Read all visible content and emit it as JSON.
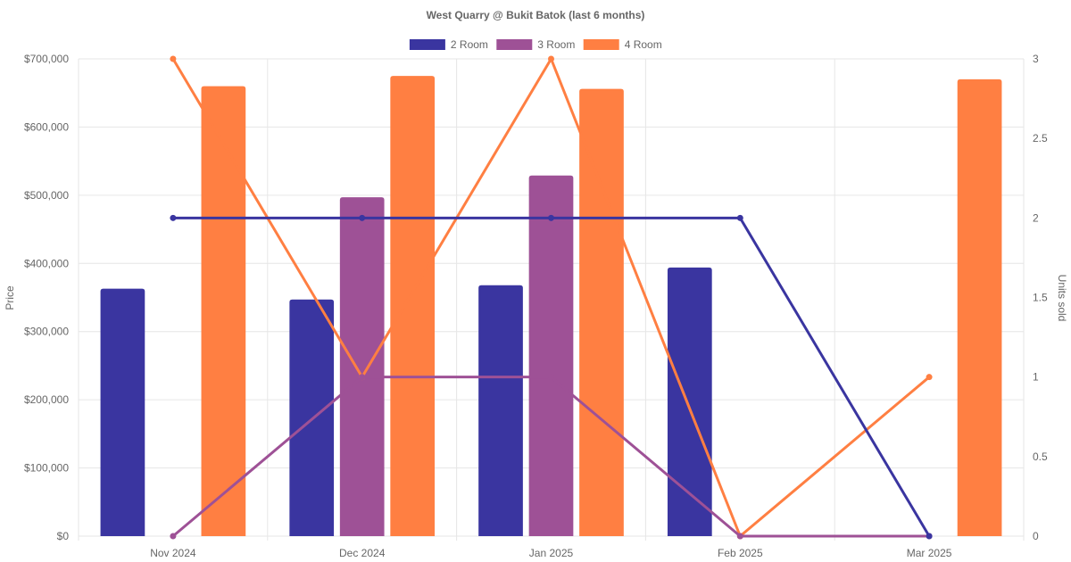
{
  "chart_data": {
    "type": "bar",
    "title": "West Quarry @ Bukit Batok (last 6 months)",
    "categories": [
      "Nov 2024",
      "Dec 2024",
      "Jan 2025",
      "Feb 2025",
      "Mar 2025"
    ],
    "y_left": {
      "label": "Price",
      "ylim": [
        0,
        700000
      ],
      "ticks": [
        0,
        100000,
        200000,
        300000,
        400000,
        500000,
        600000,
        700000
      ],
      "tick_labels": [
        "$0",
        "$100,000",
        "$200,000",
        "$300,000",
        "$400,000",
        "$500,000",
        "$600,000",
        "$700,000"
      ]
    },
    "y_right": {
      "label": "Units sold",
      "ylim": [
        0,
        3
      ],
      "ticks": [
        0,
        0.5,
        1,
        1.5,
        2,
        2.5,
        3
      ],
      "tick_labels": [
        "0",
        "0.5",
        "1",
        "1.5",
        "2",
        "2.5",
        "3"
      ]
    },
    "series": [
      {
        "name": "2 Room",
        "color": "#3a35a0",
        "price": [
          363000,
          347000,
          368000,
          394000,
          null
        ],
        "units": [
          2,
          2,
          2,
          2,
          0
        ]
      },
      {
        "name": "3 Room",
        "color": "#9e5196",
        "price": [
          null,
          497000,
          529000,
          null,
          null
        ],
        "units": [
          0,
          1,
          1,
          0,
          0
        ]
      },
      {
        "name": "4 Room",
        "color": "#ff7f42",
        "price": [
          660000,
          675000,
          656000,
          null,
          670000
        ],
        "units": [
          3,
          1,
          3,
          0,
          1
        ]
      }
    ],
    "grid": true,
    "legend": "top-center"
  }
}
